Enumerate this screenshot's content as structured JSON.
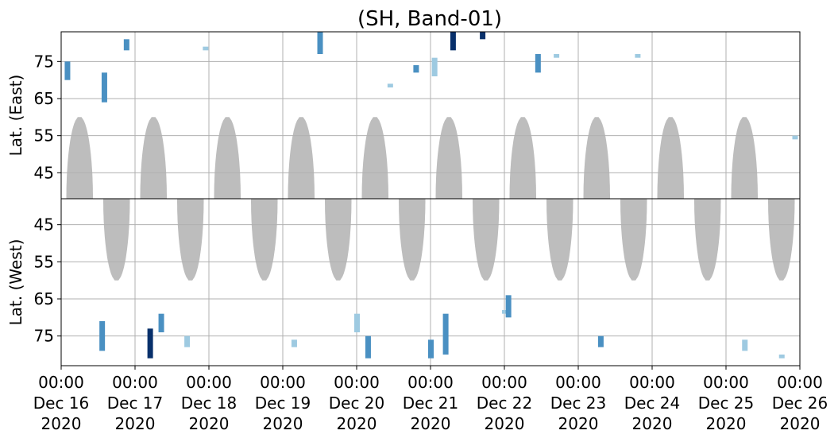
{
  "chart_data": {
    "type": "heatmap",
    "title": "(SH, Band-01)",
    "x_ticks": [
      {
        "time": "00:00",
        "date": "Dec 16",
        "year": "2020"
      },
      {
        "time": "00:00",
        "date": "Dec 17",
        "year": "2020"
      },
      {
        "time": "00:00",
        "date": "Dec 18",
        "year": "2020"
      },
      {
        "time": "00:00",
        "date": "Dec 19",
        "year": "2020"
      },
      {
        "time": "00:00",
        "date": "Dec 20",
        "year": "2020"
      },
      {
        "time": "00:00",
        "date": "Dec 21",
        "year": "2020"
      },
      {
        "time": "00:00",
        "date": "Dec 22",
        "year": "2020"
      },
      {
        "time": "00:00",
        "date": "Dec 23",
        "year": "2020"
      },
      {
        "time": "00:00",
        "date": "Dec 24",
        "year": "2020"
      },
      {
        "time": "00:00",
        "date": "Dec 25",
        "year": "2020"
      },
      {
        "time": "00:00",
        "date": "Dec 26",
        "year": "2020"
      }
    ],
    "x_range": [
      "2020-12-16",
      "2020-12-26"
    ],
    "grid": true,
    "panels": [
      {
        "ylabel": "Lat. (East)",
        "ylim": [
          83,
          38
        ],
        "y_ticks": [
          "45",
          "55",
          "65",
          "75"
        ],
        "y_tick_values": [
          45,
          55,
          65,
          75
        ],
        "no_data_shading": [
          {
            "center_day": 0.25,
            "half_width_day": 0.18,
            "lat_max": 60
          },
          {
            "center_day": 1.25,
            "half_width_day": 0.18,
            "lat_max": 60
          },
          {
            "center_day": 2.25,
            "half_width_day": 0.18,
            "lat_max": 60
          },
          {
            "center_day": 3.25,
            "half_width_day": 0.18,
            "lat_max": 60
          },
          {
            "center_day": 4.25,
            "half_width_day": 0.18,
            "lat_max": 60
          },
          {
            "center_day": 5.25,
            "half_width_day": 0.18,
            "lat_max": 60
          },
          {
            "center_day": 6.25,
            "half_width_day": 0.18,
            "lat_max": 60
          },
          {
            "center_day": 7.25,
            "half_width_day": 0.18,
            "lat_max": 60
          },
          {
            "center_day": 8.25,
            "half_width_day": 0.18,
            "lat_max": 60
          },
          {
            "center_day": 9.25,
            "half_width_day": 0.18,
            "lat_max": 60
          }
        ],
        "events": [
          [
            0.08,
            70,
            75,
            0.5
          ],
          [
            0.58,
            64,
            72,
            0.6
          ],
          [
            0.88,
            78,
            81,
            0.5
          ],
          [
            1.95,
            78,
            79,
            0.3
          ],
          [
            3.5,
            77,
            83,
            0.6
          ],
          [
            4.45,
            68,
            69,
            0.4
          ],
          [
            4.8,
            72,
            74,
            0.5
          ],
          [
            5.05,
            71,
            76,
            0.4
          ],
          [
            5.3,
            78,
            83,
            0.8
          ],
          [
            5.7,
            81,
            83,
            0.9
          ],
          [
            6.45,
            72,
            77,
            0.5
          ],
          [
            6.7,
            76,
            77,
            0.3
          ],
          [
            7.8,
            76,
            77,
            0.2
          ],
          [
            9.93,
            54,
            55,
            0.2
          ]
        ]
      },
      {
        "ylabel": "Lat. (West)",
        "ylim": [
          83,
          38
        ],
        "y_ticks": [
          "75",
          "65",
          "55",
          "45"
        ],
        "y_tick_values": [
          75,
          65,
          55,
          45
        ],
        "no_data_shading": [
          {
            "center_day": 0.75,
            "half_width_day": 0.18,
            "lat_max": 60
          },
          {
            "center_day": 1.75,
            "half_width_day": 0.18,
            "lat_max": 60
          },
          {
            "center_day": 2.75,
            "half_width_day": 0.18,
            "lat_max": 60
          },
          {
            "center_day": 3.75,
            "half_width_day": 0.18,
            "lat_max": 60
          },
          {
            "center_day": 4.75,
            "half_width_day": 0.18,
            "lat_max": 60
          },
          {
            "center_day": 5.75,
            "half_width_day": 0.18,
            "lat_max": 60
          },
          {
            "center_day": 6.75,
            "half_width_day": 0.18,
            "lat_max": 60
          },
          {
            "center_day": 7.75,
            "half_width_day": 0.18,
            "lat_max": 60
          },
          {
            "center_day": 8.75,
            "half_width_day": 0.18,
            "lat_max": 60
          },
          {
            "center_day": 9.75,
            "half_width_day": 0.18,
            "lat_max": 60
          }
        ],
        "events": [
          [
            0.55,
            71,
            79,
            0.5
          ],
          [
            1.2,
            73,
            81,
            0.8
          ],
          [
            1.35,
            69,
            74,
            0.5
          ],
          [
            1.7,
            75,
            78,
            0.4
          ],
          [
            3.15,
            76,
            78,
            0.3
          ],
          [
            4.0,
            69,
            74,
            0.4
          ],
          [
            4.15,
            75,
            81,
            0.5
          ],
          [
            5.0,
            76,
            81,
            0.6
          ],
          [
            5.2,
            69,
            80,
            0.6
          ],
          [
            6.0,
            68,
            69,
            0.3
          ],
          [
            6.05,
            64,
            70,
            0.5
          ],
          [
            7.3,
            75,
            78,
            0.5
          ],
          [
            9.25,
            76,
            79,
            0.3
          ],
          [
            9.75,
            80,
            81,
            0.4
          ]
        ]
      }
    ],
    "colors": {
      "no_data": "#bdbdbd",
      "event_light": "#9ecae1",
      "event_mid": "#4a90c2",
      "event_dark": "#08306b",
      "grid": "#b0b0b0",
      "axis": "#000000"
    }
  }
}
